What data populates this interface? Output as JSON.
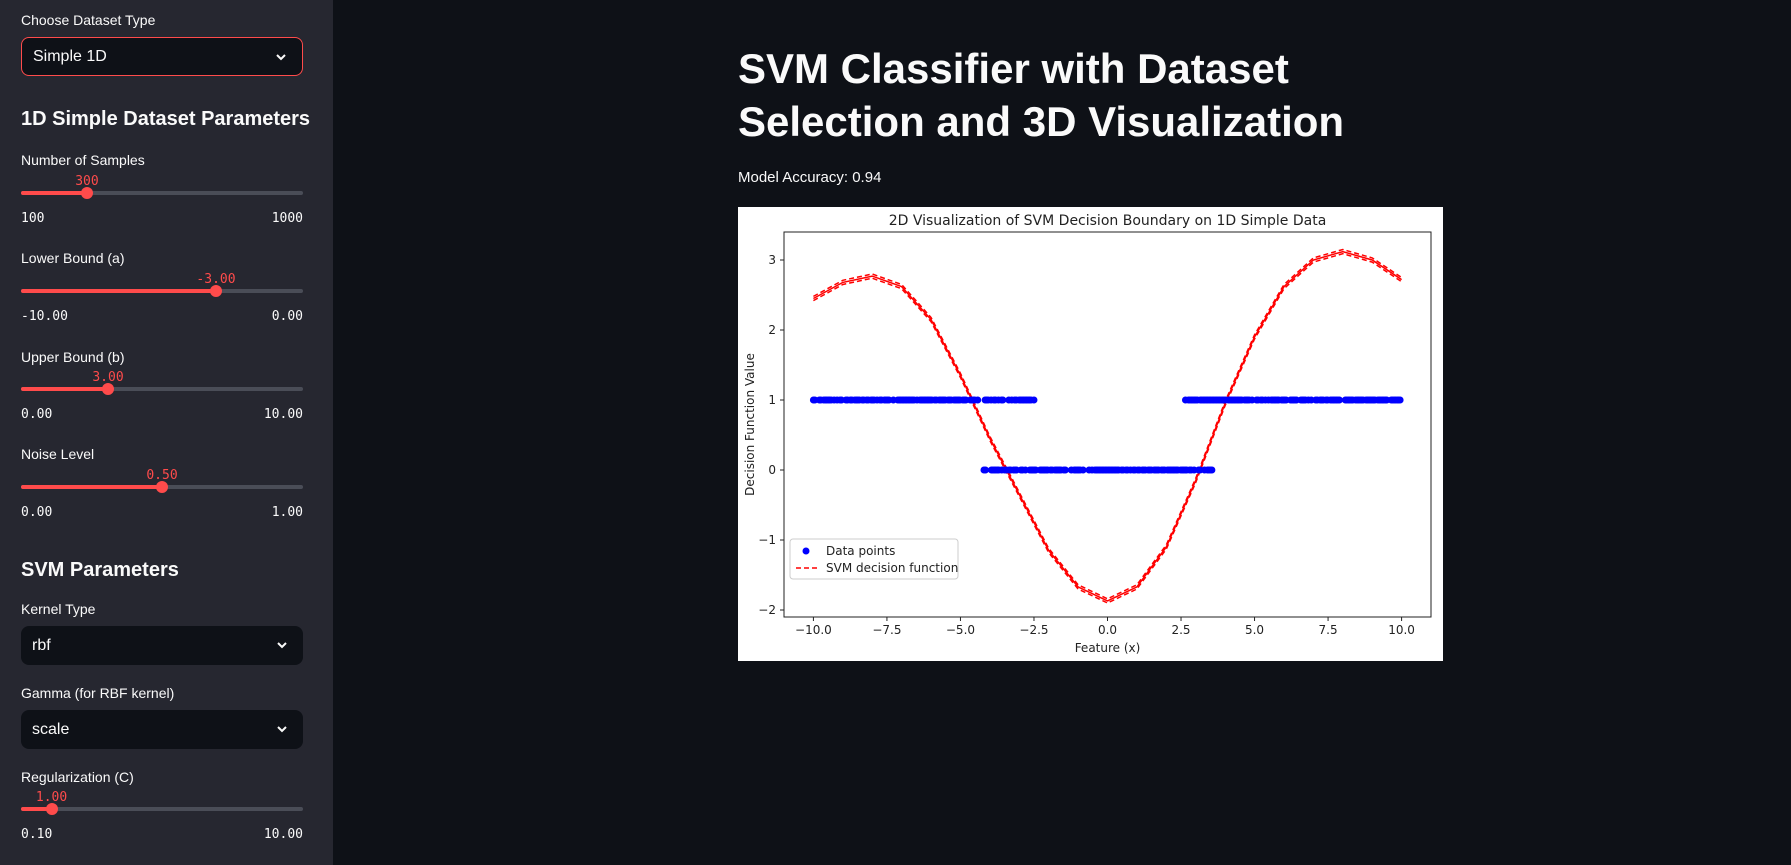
{
  "sidebar": {
    "dataset_label": "Choose Dataset Type",
    "dataset_value": "Simple 1D",
    "params_heading": "1D Simple Dataset Parameters",
    "sliders": [
      {
        "label": "Number of Samples",
        "value": "300",
        "min": "100",
        "max": "1000",
        "fraction": 0.222
      },
      {
        "label": "Lower Bound (a)",
        "value": "-3.00",
        "min": "-10.00",
        "max": "0.00",
        "fraction": 0.7
      },
      {
        "label": "Upper Bound (b)",
        "value": "3.00",
        "min": "0.00",
        "max": "10.00",
        "fraction": 0.3
      },
      {
        "label": "Noise Level",
        "value": "0.50",
        "min": "0.00",
        "max": "1.00",
        "fraction": 0.5
      }
    ],
    "svm_heading": "SVM Parameters",
    "kernel_label": "Kernel Type",
    "kernel_value": "rbf",
    "gamma_label": "Gamma (for RBF kernel)",
    "gamma_value": "scale",
    "c_slider": {
      "label": "Regularization (C)",
      "value": "1.00",
      "min": "0.10",
      "max": "10.00",
      "fraction": 0.091
    }
  },
  "main": {
    "title": "SVM Classifier with Dataset Selection and 3D Visualization",
    "accuracy": "Model Accuracy: 0.94"
  },
  "colors": {
    "accent": "#ff4b4b",
    "sidebar_bg": "#262730",
    "main_bg": "#0e1117",
    "points": "#0000ff",
    "curve": "#ff0000"
  },
  "chart_data": {
    "type": "scatter",
    "title": "2D Visualization of SVM Decision Boundary on 1D Simple Data",
    "xlabel": "Feature (x)",
    "ylabel": "Decision Function Value",
    "xlim": [
      -11,
      11
    ],
    "ylim": [
      -2.1,
      3.4
    ],
    "xticks": [
      "−10.0",
      "−7.5",
      "−5.0",
      "−2.5",
      "0.0",
      "2.5",
      "5.0",
      "7.5",
      "10.0"
    ],
    "yticks": [
      "−2",
      "−1",
      "0",
      "1",
      "2",
      "3"
    ],
    "legend": {
      "placement": "lower-left",
      "entries": [
        "Data points",
        "SVM decision function"
      ]
    },
    "series": [
      {
        "name": "Data points",
        "kind": "scatter",
        "x_ranges": [
          [
            -10,
            -2.5
          ],
          [
            2.5,
            10
          ]
        ],
        "y": 1
      },
      {
        "name": "Data points",
        "kind": "scatter",
        "x_ranges": [
          [
            -4.2,
            3.6
          ]
        ],
        "y": 0
      },
      {
        "name": "SVM decision function",
        "kind": "line",
        "x": [
          -10,
          -9,
          -8,
          -7,
          -6,
          -5,
          -4,
          -3,
          -2,
          -1,
          0,
          1,
          2,
          3,
          4,
          5,
          6,
          7,
          8,
          9,
          10
        ],
        "y": [
          2.45,
          2.68,
          2.77,
          2.62,
          2.15,
          1.35,
          0.45,
          -0.35,
          -1.15,
          -1.67,
          -1.87,
          -1.67,
          -1.1,
          -0.15,
          0.95,
          1.9,
          2.62,
          3.0,
          3.12,
          3.0,
          2.72
        ]
      }
    ]
  }
}
